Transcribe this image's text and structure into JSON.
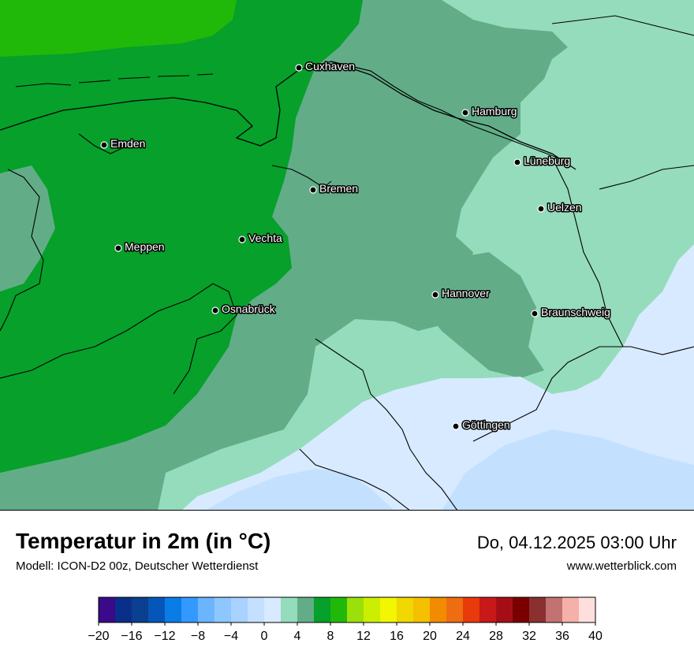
{
  "title": "Temperatur in 2m (in °C)",
  "subtitle": "Modell: ICON-D2 00z, Deutscher Wetterdienst",
  "datetime": "Do, 04.12.2025 03:00 Uhr",
  "website": "www.wetterblick.com",
  "cities": [
    {
      "name": "Cuxhaven"
    },
    {
      "name": "Hamburg"
    },
    {
      "name": "Emden"
    },
    {
      "name": "Lüneburg"
    },
    {
      "name": "Bremen"
    },
    {
      "name": "Uelzen"
    },
    {
      "name": "Vechta"
    },
    {
      "name": "Meppen"
    },
    {
      "name": "Hannover"
    },
    {
      "name": "Osnabrück"
    },
    {
      "name": "Braunschweig"
    },
    {
      "name": "Göttingen"
    }
  ],
  "legend": {
    "min": -20,
    "max": 40,
    "step": 2,
    "tick_labels": [
      "−20",
      "−16",
      "−12",
      "−8",
      "−4",
      "0",
      "4",
      "8",
      "12",
      "16",
      "20",
      "24",
      "28",
      "32",
      "36",
      "40"
    ],
    "colors": [
      "#3a0a8a",
      "#0a2f8a",
      "#0b3f8f",
      "#0556b8",
      "#0a7ce6",
      "#3399ff",
      "#6bb5ff",
      "#8ec7ff",
      "#a8d2ff",
      "#c4e0ff",
      "#d8eaff",
      "#95dcbc",
      "#62ad88",
      "#06a02a",
      "#20b90a",
      "#9be00a",
      "#ccee00",
      "#f2f600",
      "#f0d800",
      "#f4c000",
      "#f28b00",
      "#ee6c12",
      "#e83a0a",
      "#c81818",
      "#a60e16",
      "#7a0000",
      "#8a3030",
      "#c27272",
      "#f5b0aa",
      "#ffdede"
    ]
  },
  "map_colors": {
    "t10": "#20b90a",
    "t8": "#06a02a",
    "t6": "#62ad88",
    "t4": "#95dcbc",
    "t2": "#d8eaff",
    "t0": "#c4e0ff"
  }
}
